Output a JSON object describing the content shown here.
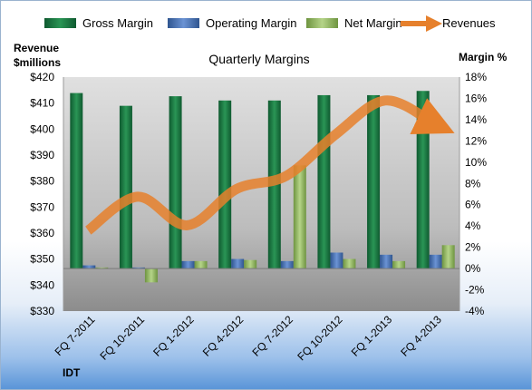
{
  "chart_data": {
    "type": "bar",
    "title": "Quarterly Margins",
    "categories": [
      "FQ 7-2011",
      "FQ 10-2011",
      "FQ 1-2012",
      "FQ 4-2012",
      "FQ 7-2012",
      "FQ 10-2012",
      "FQ 1-2013",
      "FQ 4-2013"
    ],
    "series": [
      {
        "name": "Gross Margin",
        "type": "bar",
        "axis": "right",
        "color": "#1e7a45",
        "values": [
          16.5,
          15.3,
          16.2,
          15.8,
          15.8,
          16.3,
          16.3,
          16.7
        ]
      },
      {
        "name": "Operating Margin",
        "type": "bar",
        "axis": "right",
        "color": "#4a73b8",
        "values": [
          0.3,
          0.1,
          0.7,
          0.9,
          0.7,
          1.5,
          1.3,
          1.3
        ]
      },
      {
        "name": "Net Margin",
        "type": "bar",
        "axis": "right",
        "color": "#90b460",
        "values": [
          0.1,
          -1.3,
          0.7,
          0.8,
          9.7,
          0.9,
          0.7,
          2.2
        ]
      },
      {
        "name": "Revenues",
        "type": "line",
        "axis": "left",
        "color": "#e6802c",
        "values": [
          361,
          374,
          363,
          377,
          382,
          398,
          411,
          402
        ]
      }
    ],
    "left_axis": {
      "label_line1": "Revenue",
      "label_line2": "$millions",
      "min": 330,
      "max": 420,
      "step": 10,
      "tick_prefix": "$"
    },
    "right_axis": {
      "label": "Margin %",
      "min": -4,
      "max": 18,
      "step": 2,
      "tick_suffix": "%"
    },
    "legend_position": "top",
    "grid": false,
    "footer_label": "IDT"
  }
}
